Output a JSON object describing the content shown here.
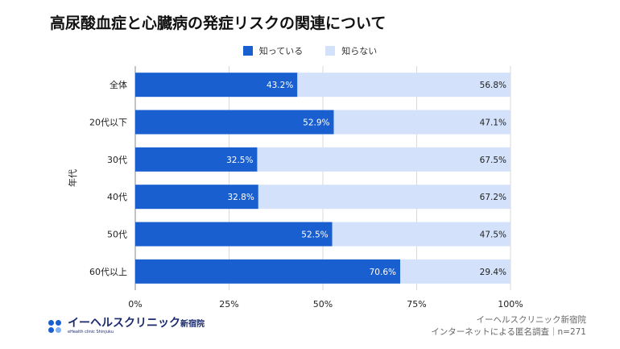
{
  "title": "高尿酸血症と心臓病の発症リスクの関連について",
  "legend": {
    "known": "知っている",
    "unknown": "知らない"
  },
  "colors": {
    "known": "#1a5fd0",
    "unknown": "#d3e2fa",
    "grid": "#d9d9d9",
    "axis": "#888888"
  },
  "footer": {
    "logo_main": "イーヘルスクリニック",
    "logo_suffix": "新宿院",
    "logo_sub": "eHealth clinic Shinjuku",
    "source_line1": "イーヘルスクリニック新宿院",
    "source_line2": "インターネットによる匿名調査｜n=271"
  },
  "chart_data": {
    "type": "bar",
    "orientation": "horizontal",
    "stacked": true,
    "categories": [
      "全体",
      "20代以下",
      "30代",
      "40代",
      "50代",
      "60代以上"
    ],
    "series": [
      {
        "name": "知っている",
        "values": [
          43.2,
          52.9,
          32.5,
          32.8,
          52.5,
          70.6
        ],
        "labels": [
          "43.2%",
          "52.9%",
          "32.5%",
          "32.8%",
          "52.5%",
          "70.6%"
        ]
      },
      {
        "name": "知らない",
        "values": [
          56.8,
          47.1,
          67.5,
          67.2,
          47.5,
          29.4
        ],
        "labels": [
          "56.8%",
          "47.1%",
          "67.5%",
          "67.2%",
          "47.5%",
          "29.4%"
        ]
      }
    ],
    "ylabel": "年代",
    "xlim": [
      0,
      100
    ],
    "xticks": [
      "0%",
      "25%",
      "50%",
      "75%",
      "100%"
    ],
    "grid": true,
    "legend_position": "top-center"
  }
}
